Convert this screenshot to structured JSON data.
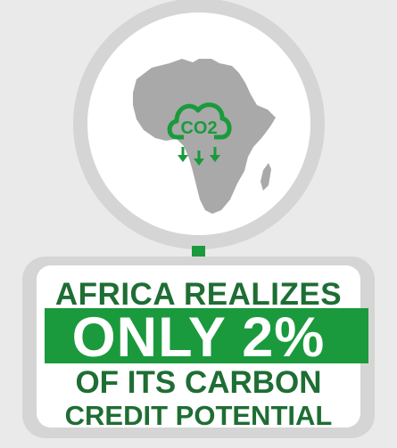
{
  "icon": {
    "cloud_label": "CO2",
    "brand_green": "#1a9a3c",
    "text_green": "#1e6e34"
  },
  "headline": {
    "line1": "AFRICA REALIZES",
    "line2": "ONLY 2%",
    "line3": "OF ITS CARBON",
    "line4": "CREDIT POTENTIAL"
  },
  "stat": {
    "percent": 2
  }
}
